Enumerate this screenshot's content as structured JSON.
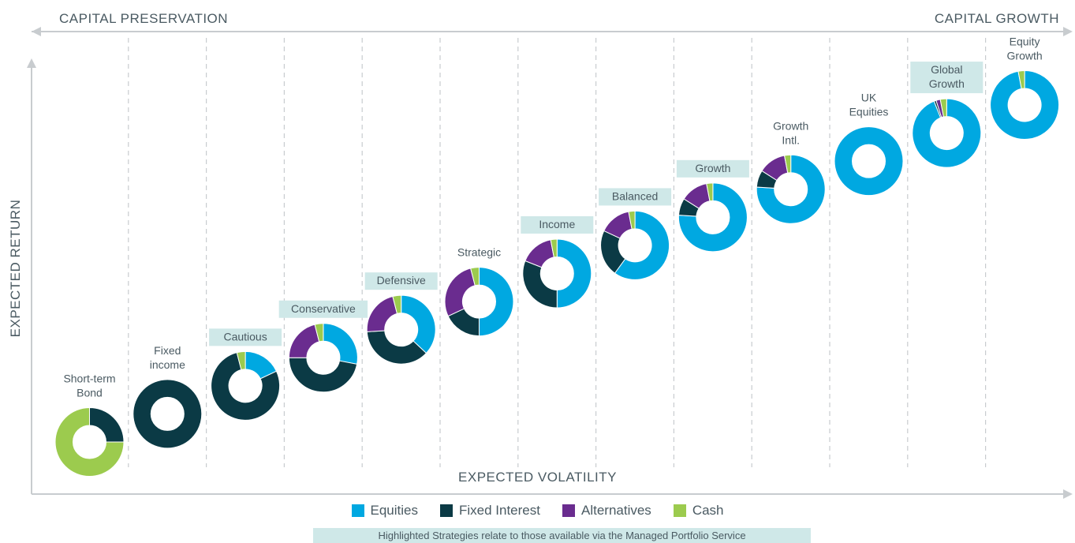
{
  "header": {
    "left_label": "CAPITAL PRESERVATION",
    "right_label": "CAPITAL GROWTH"
  },
  "colors": {
    "equities": "#00a8e1",
    "fixed_interest": "#0b3a45",
    "alternatives": "#6a2c8f",
    "cash": "#9ccb4e",
    "highlight": "#cfe8e8",
    "axis": "#c8cccf",
    "text": "#4a5a62"
  },
  "legend": {
    "items": [
      {
        "label": "Equities",
        "color": "#00a8e1"
      },
      {
        "label": "Fixed Interest",
        "color": "#0b3a45"
      },
      {
        "label": "Alternatives",
        "color": "#6a2c8f"
      },
      {
        "label": "Cash",
        "color": "#9ccb4e"
      }
    ]
  },
  "footnote": "Highlighted Strategies relate to those available via the Managed Portfolio Service",
  "chart_data": {
    "type": "pie",
    "subtype": "donut",
    "xlabel": "EXPECTED VOLATILITY",
    "ylabel": "EXPECTED RETURN",
    "series_names": [
      "Equities",
      "Fixed Interest",
      "Alternatives",
      "Cash"
    ],
    "portfolios": [
      {
        "name": "Short-term Bond",
        "lines": [
          "Short-term",
          "Bond"
        ],
        "highlighted": false,
        "values": {
          "Equities": 0,
          "Fixed Interest": 25,
          "Alternatives": 0,
          "Cash": 75
        }
      },
      {
        "name": "Fixed income",
        "lines": [
          "Fixed",
          "income"
        ],
        "highlighted": false,
        "values": {
          "Equities": 0,
          "Fixed Interest": 100,
          "Alternatives": 0,
          "Cash": 0
        }
      },
      {
        "name": "Cautious",
        "lines": [
          "Cautious"
        ],
        "highlighted": true,
        "values": {
          "Equities": 18,
          "Fixed Interest": 78,
          "Alternatives": 0,
          "Cash": 4
        }
      },
      {
        "name": "Conservative",
        "lines": [
          "Conservative"
        ],
        "highlighted": true,
        "values": {
          "Equities": 28,
          "Fixed Interest": 47,
          "Alternatives": 21,
          "Cash": 4
        }
      },
      {
        "name": "Defensive",
        "lines": [
          "Defensive"
        ],
        "highlighted": true,
        "values": {
          "Equities": 37,
          "Fixed Interest": 37,
          "Alternatives": 22,
          "Cash": 4
        }
      },
      {
        "name": "Strategic",
        "lines": [
          "Strategic"
        ],
        "highlighted": false,
        "values": {
          "Equities": 50,
          "Fixed Interest": 18,
          "Alternatives": 28,
          "Cash": 4
        }
      },
      {
        "name": "Income",
        "lines": [
          "Income"
        ],
        "highlighted": true,
        "values": {
          "Equities": 50,
          "Fixed Interest": 31,
          "Alternatives": 16,
          "Cash": 3
        }
      },
      {
        "name": "Balanced",
        "lines": [
          "Balanced"
        ],
        "highlighted": true,
        "values": {
          "Equities": 60,
          "Fixed Interest": 22,
          "Alternatives": 15,
          "Cash": 3
        }
      },
      {
        "name": "Growth",
        "lines": [
          "Growth"
        ],
        "highlighted": true,
        "values": {
          "Equities": 76,
          "Fixed Interest": 8,
          "Alternatives": 13,
          "Cash": 3
        }
      },
      {
        "name": "Growth Intl.",
        "lines": [
          "Growth",
          "Intl."
        ],
        "highlighted": false,
        "values": {
          "Equities": 76,
          "Fixed Interest": 8,
          "Alternatives": 13,
          "Cash": 3
        }
      },
      {
        "name": "UK Equities",
        "lines": [
          "UK",
          "Equities"
        ],
        "highlighted": false,
        "values": {
          "Equities": 100,
          "Fixed Interest": 0,
          "Alternatives": 0,
          "Cash": 0
        }
      },
      {
        "name": "Global Growth",
        "lines": [
          "Global",
          "Growth"
        ],
        "highlighted": true,
        "values": {
          "Equities": 94,
          "Fixed Interest": 1,
          "Alternatives": 2,
          "Cash": 3
        }
      },
      {
        "name": "Equity Growth",
        "lines": [
          "Equity",
          "Growth"
        ],
        "highlighted": false,
        "values": {
          "Equities": 97,
          "Fixed Interest": 0,
          "Alternatives": 0,
          "Cash": 3
        }
      }
    ]
  }
}
